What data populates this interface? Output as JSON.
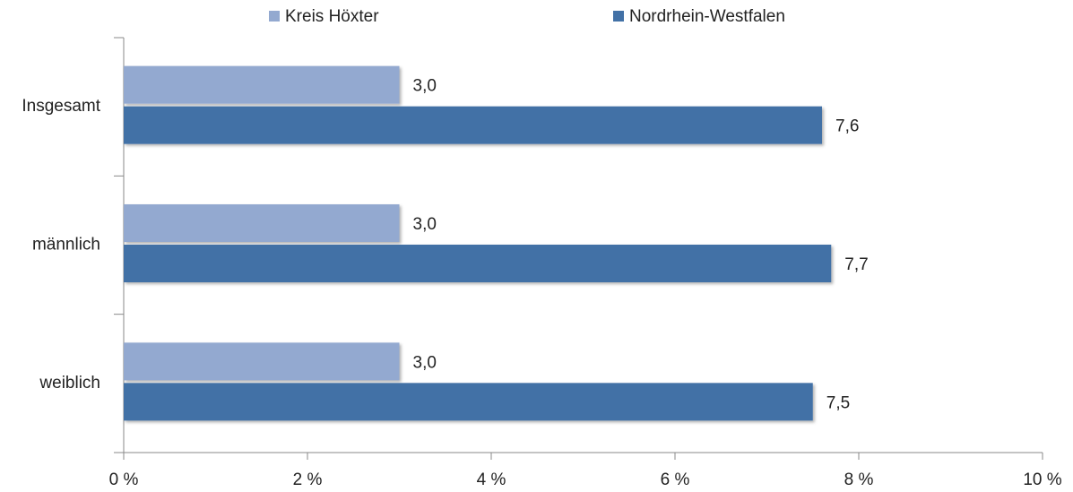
{
  "chart_data": {
    "type": "bar",
    "orientation": "horizontal",
    "categories": [
      "Insgesamt",
      "männlich",
      "weiblich"
    ],
    "series": [
      {
        "name": "Kreis Höxter",
        "color": "#93a9d0",
        "values": [
          3.0,
          3.0,
          3.0
        ],
        "value_labels": [
          "3,0",
          "3,0",
          "3,0"
        ]
      },
      {
        "name": "Nordrhein-Westfalen",
        "color": "#4271a6",
        "values": [
          7.6,
          7.7,
          7.5
        ],
        "value_labels": [
          "7,6",
          "7,7",
          "7,5"
        ]
      }
    ],
    "xlim": [
      0,
      10
    ],
    "xticks": [
      {
        "value": 0,
        "label": "0 %"
      },
      {
        "value": 2,
        "label": "2 %"
      },
      {
        "value": 4,
        "label": "4 %"
      },
      {
        "value": 6,
        "label": "6 %"
      },
      {
        "value": 8,
        "label": "8 %"
      },
      {
        "value": 10,
        "label": "10 %"
      }
    ],
    "legend": "top"
  }
}
